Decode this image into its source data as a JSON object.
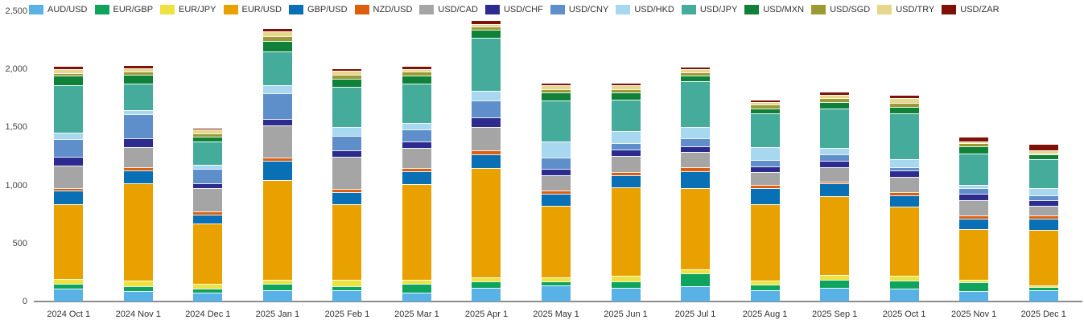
{
  "chart_data": {
    "type": "bar",
    "stacked": true,
    "title": "",
    "xlabel": "",
    "ylabel": "",
    "ylim": [
      0,
      2500
    ],
    "y_tick_step": 500,
    "y_tick_labels": [
      "0",
      "500",
      "1,000",
      "1,500",
      "2,000",
      "2,500"
    ],
    "grid": false,
    "legend_position": "top",
    "categories": [
      "2024 Oct 1",
      "2024 Nov 1",
      "2024 Dec 1",
      "2025 Jan 1",
      "2025 Feb 1",
      "2025 Mar 1",
      "2025 Apr 1",
      "2025 May 1",
      "2025 Jun 1",
      "2025 Jul 1",
      "2025 Aug 1",
      "2025 Sep 1",
      "2025 Oct 1",
      "2025 Nov 1",
      "2025 Dec 1"
    ],
    "series": [
      {
        "name": "AUD/USD",
        "color": "#59B2E6",
        "values": [
          110,
          90,
          75,
          95,
          100,
          75,
          120,
          140,
          120,
          135,
          100,
          115,
          110,
          90,
          100
        ]
      },
      {
        "name": "EUR/GBP",
        "color": "#0FA45C",
        "values": [
          45,
          45,
          35,
          60,
          30,
          75,
          55,
          35,
          55,
          110,
          45,
          75,
          70,
          75,
          25
        ]
      },
      {
        "name": "EUR/JPY",
        "color": "#EDE23F",
        "values": [
          40,
          45,
          45,
          30,
          55,
          40,
          35,
          30,
          50,
          30,
          35,
          40,
          45,
          25,
          15
        ]
      },
      {
        "name": "EUR/USD",
        "color": "#E9A100",
        "values": [
          640,
          840,
          515,
          860,
          650,
          820,
          940,
          620,
          760,
          705,
          660,
          675,
          590,
          430,
          480
        ]
      },
      {
        "name": "GBP/USD",
        "color": "#0A70B5",
        "values": [
          120,
          110,
          75,
          170,
          110,
          110,
          115,
          100,
          105,
          140,
          135,
          115,
          100,
          90,
          95
        ]
      },
      {
        "name": "NZD/USD",
        "color": "#DD5F0E",
        "values": [
          25,
          30,
          30,
          25,
          25,
          30,
          35,
          30,
          25,
          35,
          30,
          10,
          30,
          30,
          25
        ]
      },
      {
        "name": "USD/CAD",
        "color": "#A5A5A5",
        "values": [
          190,
          170,
          200,
          280,
          280,
          170,
          205,
          135,
          140,
          135,
          110,
          130,
          130,
          130,
          85
        ]
      },
      {
        "name": "USD/CHF",
        "color": "#2E2B90",
        "values": [
          80,
          75,
          40,
          55,
          50,
          55,
          80,
          55,
          55,
          45,
          50,
          55,
          55,
          60,
          45
        ]
      },
      {
        "name": "USD/CNY",
        "color": "#5E8FCB",
        "values": [
          150,
          210,
          125,
          220,
          130,
          105,
          150,
          95,
          55,
          70,
          55,
          50,
          30,
          45,
          45
        ]
      },
      {
        "name": "USD/HKD",
        "color": "#A8D7F0",
        "values": [
          55,
          30,
          40,
          70,
          75,
          55,
          80,
          140,
          100,
          95,
          110,
          55,
          65,
          30,
          65
        ]
      },
      {
        "name": "USD/JPY",
        "color": "#45AC9B",
        "values": [
          410,
          230,
          200,
          290,
          345,
          345,
          460,
          350,
          275,
          400,
          290,
          340,
          395,
          270,
          245
        ]
      },
      {
        "name": "USD/MXN",
        "color": "#0F8138",
        "values": [
          80,
          75,
          40,
          90,
          70,
          65,
          65,
          70,
          60,
          45,
          45,
          60,
          55,
          60,
          40
        ]
      },
      {
        "name": "USD/SGD",
        "color": "#9C9A33",
        "values": [
          25,
          30,
          30,
          40,
          30,
          35,
          30,
          30,
          30,
          30,
          30,
          35,
          35,
          30,
          10
        ]
      },
      {
        "name": "USD/TRY",
        "color": "#E6D78C",
        "values": [
          35,
          30,
          30,
          40,
          40,
          25,
          20,
          30,
          30,
          25,
          25,
          25,
          40,
          15,
          25
        ]
      },
      {
        "name": "USD/ZAR",
        "color": "#801109",
        "values": [
          15,
          20,
          10,
          20,
          15,
          15,
          30,
          20,
          15,
          15,
          10,
          20,
          25,
          30,
          50
        ]
      }
    ]
  },
  "axis": {
    "baseline_color": "#8c8c8c"
  }
}
